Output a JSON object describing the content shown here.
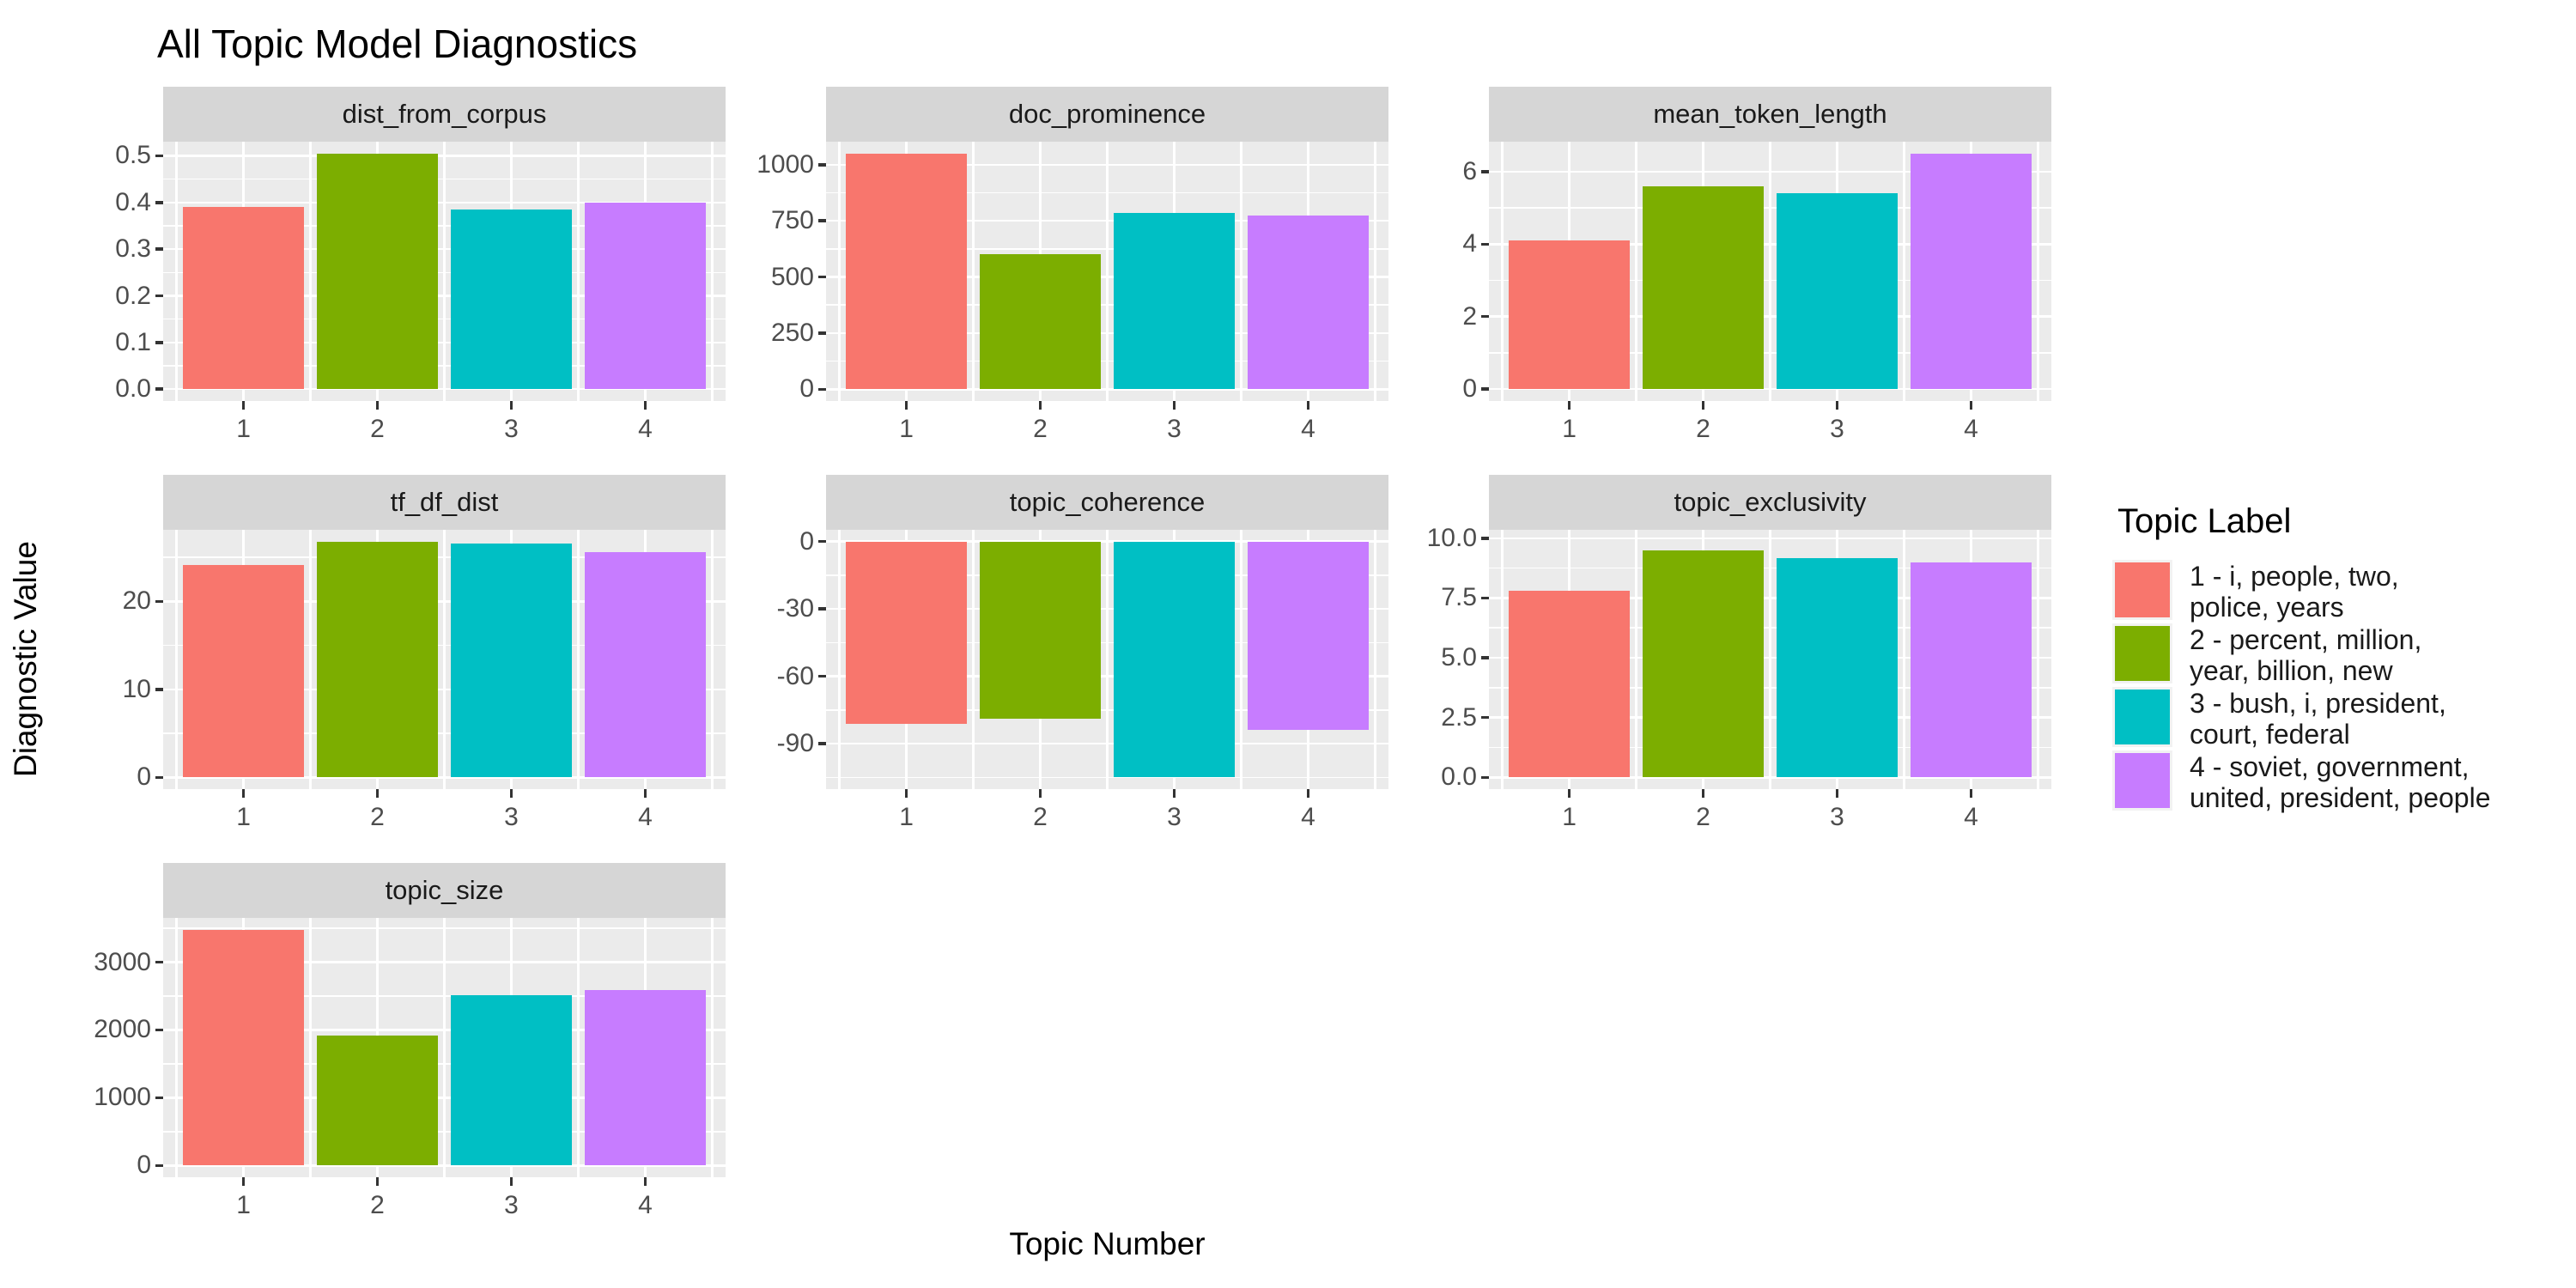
{
  "title": "All Topic Model Diagnostics",
  "axis_titles": {
    "x": "Topic Number",
    "y": "Diagnostic Value"
  },
  "legend": {
    "title": "Topic Label",
    "entries": [
      {
        "lines": "1 - i, people, two,\npolice, years",
        "color": "#F8766D"
      },
      {
        "lines": "2 - percent, million,\nyear, billion, new",
        "color": "#7CAE00"
      },
      {
        "lines": "3 - bush, i, president,\ncourt, federal",
        "color": "#00BFC4"
      },
      {
        "lines": "4 - soviet, government,\nunited, president, people",
        "color": "#C77CFF"
      }
    ]
  },
  "style": {
    "bar_colors": [
      "#F8766D",
      "#7CAE00",
      "#00BFC4",
      "#C77CFF"
    ],
    "panel_bg": "#EBEBEB",
    "strip_bg": "#D6D6D6",
    "grid_color": "#FFFFFF",
    "tick_text_color": "#4D4D4D",
    "tick_mark_color": "#333333",
    "strip_text_color": "#1A1A1A"
  },
  "chart_data": {
    "type": "bar",
    "faceted": true,
    "title": "All Topic Model Diagnostics",
    "xlabel": "Topic Number",
    "ylabel": "Diagnostic Value",
    "categories": [
      "1",
      "2",
      "3",
      "4"
    ],
    "series_names": [
      "1 - i, people, two, police, years",
      "2 - percent, million, year, billion, new",
      "3 - bush, i, president, court, federal",
      "4 - soviet, government, united, president, people"
    ],
    "legend_position": "right",
    "grid": true,
    "facets": [
      {
        "name": "dist_from_corpus",
        "values": [
          0.39,
          0.505,
          0.385,
          0.4
        ],
        "ticks": [
          0,
          0.1,
          0.2,
          0.3,
          0.4,
          0.5
        ],
        "tick_labels": [
          "0.0",
          "0.1",
          "0.2",
          "0.3",
          "0.4",
          "0.5"
        ],
        "ylim": [
          -0.0253,
          0.5303
        ]
      },
      {
        "name": "doc_prominence",
        "values": [
          1050,
          600,
          785,
          775
        ],
        "ticks": [
          0,
          250,
          500,
          750,
          1000
        ],
        "tick_labels": [
          "0",
          "250",
          "500",
          "750",
          "1000"
        ],
        "ylim": [
          -52.5,
          1102.5
        ]
      },
      {
        "name": "mean_token_length",
        "values": [
          4.1,
          5.6,
          5.4,
          6.5
        ],
        "ticks": [
          0,
          2,
          4,
          6
        ],
        "tick_labels": [
          "0",
          "2",
          "4",
          "6"
        ],
        "ylim": [
          -0.33,
          6.83
        ]
      },
      {
        "name": "tf_df_dist",
        "values": [
          24.1,
          26.8,
          26.6,
          25.6
        ],
        "ticks": [
          0,
          10,
          20
        ],
        "tick_labels": [
          "0",
          "10",
          "20"
        ],
        "ylim": [
          -1.34,
          28.14
        ]
      },
      {
        "name": "topic_coherence",
        "values": [
          -81,
          -79,
          -105,
          -84
        ],
        "ticks": [
          0,
          -30,
          -60,
          -90
        ],
        "tick_labels": [
          "0",
          "-30",
          "-60",
          "-90"
        ],
        "ylim": [
          -110.25,
          5.25
        ]
      },
      {
        "name": "topic_exclusivity",
        "values": [
          7.8,
          9.5,
          9.15,
          9.0
        ],
        "ticks": [
          0,
          2.5,
          5,
          7.5,
          10
        ],
        "tick_labels": [
          "0.0",
          "2.5",
          "5.0",
          "7.5",
          "10.0"
        ],
        "ylim": [
          -0.49,
          10.35
        ]
      },
      {
        "name": "topic_size",
        "values": [
          3480,
          1920,
          2510,
          2590
        ],
        "ticks": [
          0,
          1000,
          2000,
          3000
        ],
        "tick_labels": [
          "0",
          "1000",
          "2000",
          "3000"
        ],
        "ylim": [
          -174,
          3654
        ]
      }
    ]
  }
}
